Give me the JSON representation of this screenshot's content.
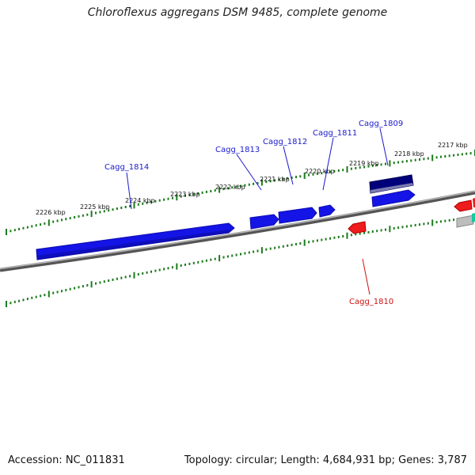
{
  "title": "Chloroflexus aggregans DSM 9485, complete genome",
  "footer": {
    "accession": "Accession: NC_011831",
    "summary": "Topology: circular; Length: 4,684,931 bp; Genes: 3,787"
  },
  "scale_labels": [
    "2226 kbp",
    "2225 kbp",
    "2224 kbp",
    "2223 kbp",
    "2222 kbp",
    "2221 kbp",
    "2220 kbp",
    "2219 kbp",
    "2218 kbp",
    "2217 kbp"
  ],
  "gene_labels": [
    "Cagg_1814",
    "Cagg_1813",
    "Cagg_1812",
    "Cagg_1811",
    "Cagg_1809",
    "Cagg_1810"
  ],
  "colors": {
    "forward_gene": "#1414e6",
    "forward_gene_dark": "#00007a",
    "reverse_gene": "#ee1c1c",
    "backbone": "#8a8a8a",
    "ticks": "#1c7a1c",
    "forward_label": "#1a1acc",
    "reverse_label": "#cc1111"
  }
}
